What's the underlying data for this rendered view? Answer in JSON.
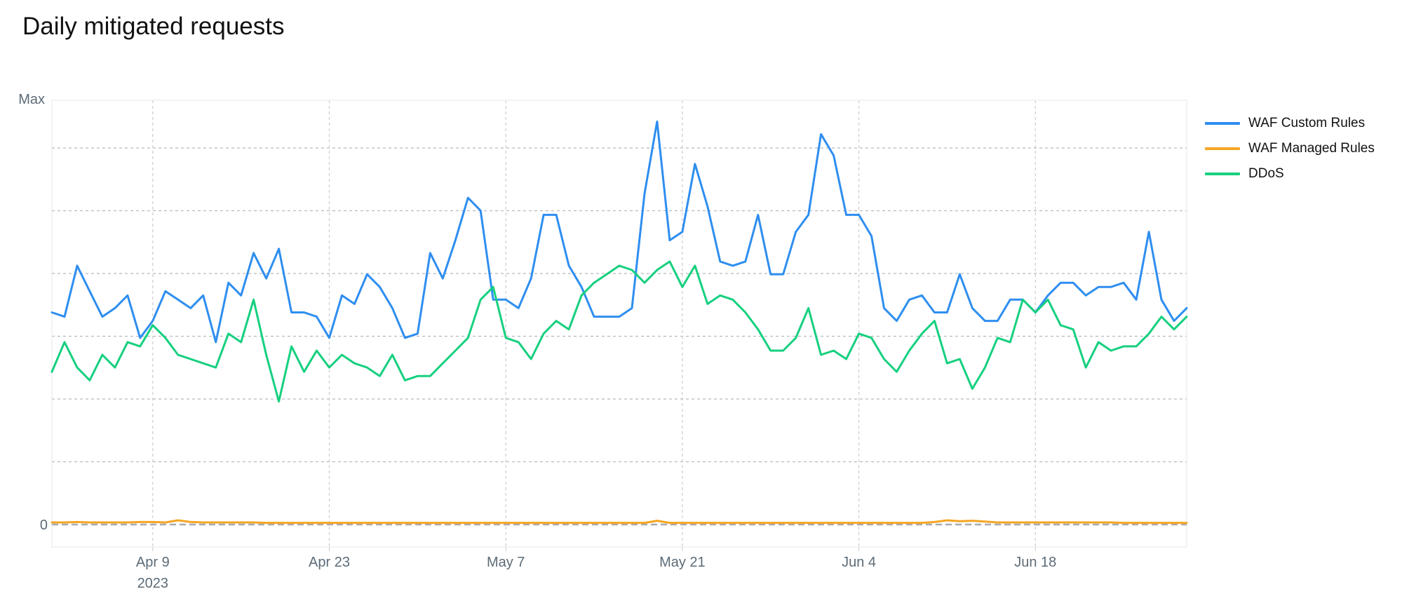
{
  "page": {
    "title": "Daily mitigated requests"
  },
  "legend": {
    "items": [
      {
        "label": "WAF Custom Rules",
        "color": "#2e8ef0"
      },
      {
        "label": "WAF Managed Rules",
        "color": "#f5a623"
      },
      {
        "label": "DDoS",
        "color": "#16d07f"
      }
    ]
  },
  "chart_data": {
    "type": "line",
    "title": "Daily mitigated requests",
    "xlabel": "",
    "ylabel": "",
    "y_tick_labels": [
      "0",
      "Max"
    ],
    "ylim": [
      0,
      100
    ],
    "grid": true,
    "legend_position": "right",
    "x_start": "2023-04-01",
    "x_end": "2023-06-30",
    "x_tick_labels": [
      {
        "date": "2023-04-09",
        "label": "Apr 9",
        "sublabel": "2023"
      },
      {
        "date": "2023-04-23",
        "label": "Apr 23",
        "sublabel": ""
      },
      {
        "date": "2023-05-07",
        "label": "May 7",
        "sublabel": ""
      },
      {
        "date": "2023-05-21",
        "label": "May 21",
        "sublabel": ""
      },
      {
        "date": "2023-06-04",
        "label": "Jun 4",
        "sublabel": ""
      },
      {
        "date": "2023-06-18",
        "label": "Jun 18",
        "sublabel": ""
      }
    ],
    "series": [
      {
        "name": "WAF Custom Rules",
        "color": "#2e8ef0",
        "values": [
          50,
          49,
          61,
          55,
          49,
          51,
          54,
          44,
          48,
          55,
          53,
          51,
          54,
          43,
          57,
          54,
          64,
          58,
          65,
          50,
          50,
          49,
          44,
          54,
          52,
          59,
          56,
          51,
          44,
          45,
          64,
          58,
          67,
          77,
          74,
          53,
          53,
          51,
          58,
          73,
          73,
          61,
          56,
          49,
          49,
          49,
          51,
          78,
          95,
          67,
          69,
          85,
          75,
          62,
          61,
          62,
          73,
          59,
          59,
          69,
          73,
          92,
          87,
          73,
          73,
          68,
          51,
          48,
          53,
          54,
          50,
          50,
          59,
          51,
          48,
          48,
          53,
          53,
          50,
          54,
          57,
          57,
          54,
          56,
          56,
          57,
          53,
          69,
          53,
          48,
          51
        ]
      },
      {
        "name": "WAF Managed Rules",
        "color": "#f5a623",
        "values": [
          0.5,
          0.5,
          0.6,
          0.5,
          0.5,
          0.5,
          0.5,
          0.6,
          0.6,
          0.5,
          1.0,
          0.6,
          0.5,
          0.5,
          0.5,
          0.5,
          0.5,
          0.4,
          0.4,
          0.4,
          0.4,
          0.4,
          0.4,
          0.4,
          0.4,
          0.4,
          0.4,
          0.4,
          0.4,
          0.4,
          0.4,
          0.4,
          0.4,
          0.4,
          0.4,
          0.4,
          0.4,
          0.4,
          0.4,
          0.4,
          0.4,
          0.4,
          0.4,
          0.4,
          0.4,
          0.4,
          0.4,
          0.4,
          0.9,
          0.4,
          0.4,
          0.4,
          0.4,
          0.4,
          0.4,
          0.4,
          0.4,
          0.4,
          0.4,
          0.4,
          0.4,
          0.4,
          0.4,
          0.4,
          0.4,
          0.4,
          0.4,
          0.4,
          0.4,
          0.4,
          0.6,
          1.0,
          0.8,
          0.9,
          0.7,
          0.5,
          0.5,
          0.5,
          0.5,
          0.5,
          0.5,
          0.5,
          0.5,
          0.5,
          0.5,
          0.4,
          0.4,
          0.4,
          0.4,
          0.4,
          0.4
        ]
      },
      {
        "name": "DDoS",
        "color": "#16d07f",
        "values": [
          36,
          43,
          37,
          34,
          40,
          37,
          43,
          42,
          47,
          44,
          40,
          39,
          38,
          37,
          45,
          43,
          53,
          40,
          29,
          42,
          36,
          41,
          37,
          40,
          38,
          37,
          35,
          40,
          34,
          35,
          35,
          38,
          41,
          44,
          53,
          56,
          44,
          43,
          39,
          45,
          48,
          46,
          54,
          57,
          59,
          61,
          60,
          57,
          60,
          62,
          56,
          61,
          52,
          54,
          53,
          50,
          46,
          41,
          41,
          44,
          51,
          40,
          41,
          39,
          45,
          44,
          39,
          36,
          41,
          45,
          48,
          38,
          39,
          32,
          37,
          44,
          43,
          53,
          50,
          53,
          47,
          46,
          37,
          43,
          41,
          42,
          42,
          45,
          49,
          46,
          49
        ]
      }
    ]
  }
}
